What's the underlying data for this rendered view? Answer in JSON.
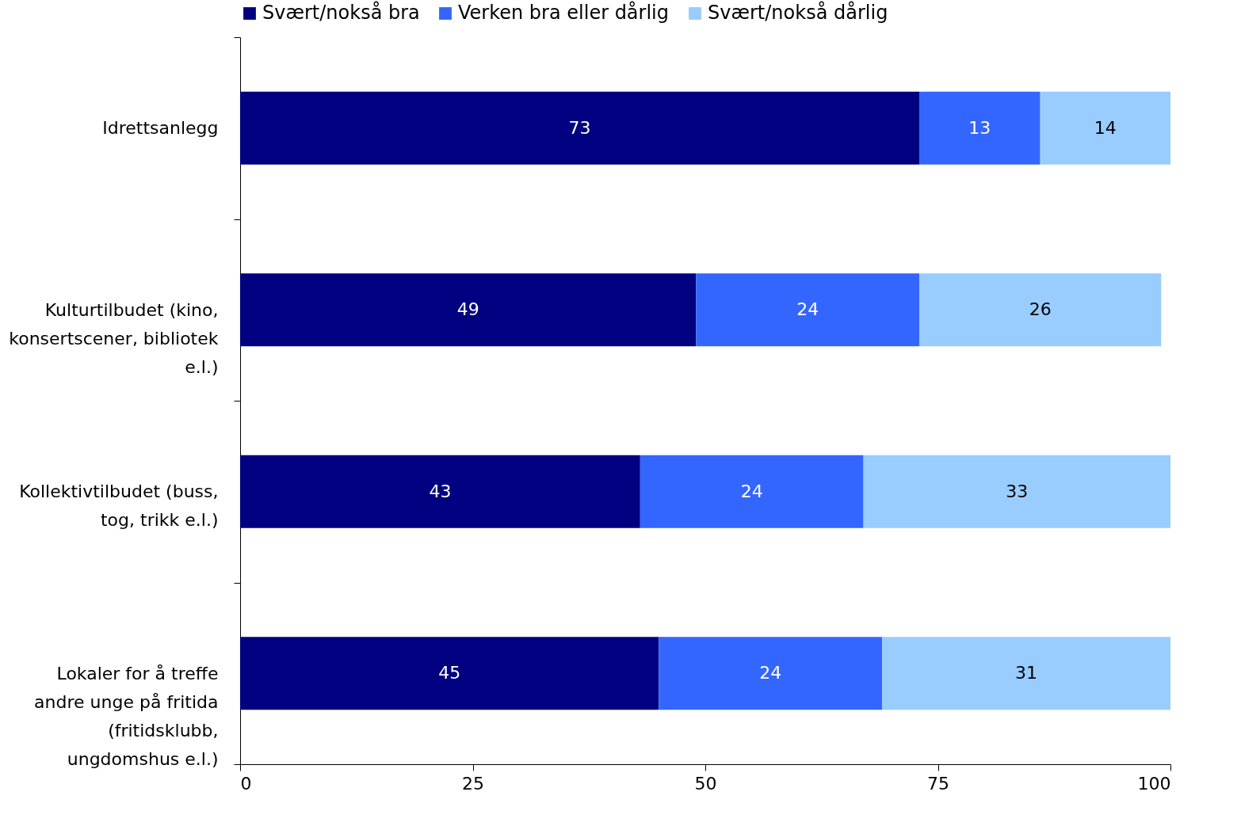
{
  "chart_data": {
    "type": "bar",
    "orientation": "horizontal",
    "stacked": true,
    "categories": [
      "Idrettsanlegg",
      "Kulturtilbudet (kino, konsertscener, bibliotek e.l.)",
      "Kollektivtilbudet (buss, tog, trikk e.l.)",
      "Lokaler for å treffe andre unge på fritida (fritidsklubb, ungdomshus e.l.)"
    ],
    "series": [
      {
        "name": "Svært/nokså bra",
        "color": "#000080",
        "values": [
          73,
          49,
          43,
          45
        ]
      },
      {
        "name": "Verken bra eller dårlig",
        "color": "#3366ff",
        "values": [
          13,
          24,
          24,
          24
        ]
      },
      {
        "name": "Svært/nokså dårlig",
        "color": "#99ccff",
        "values": [
          14,
          26,
          33,
          31
        ]
      }
    ],
    "xlim": [
      0,
      100
    ],
    "xticks": [
      0,
      25,
      50,
      75,
      100
    ],
    "grid": false,
    "legend": "top",
    "data_labels": true
  }
}
